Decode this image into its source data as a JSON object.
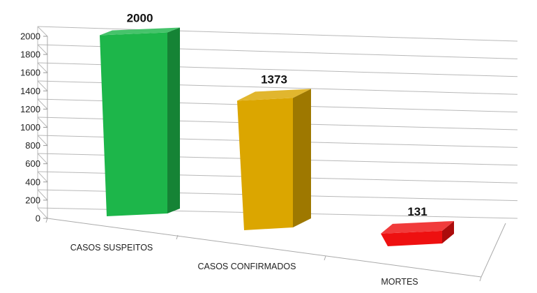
{
  "chart_data": {
    "type": "bar",
    "categories": [
      "CASOS SUSPEITOS",
      "CASOS CONFIRMADOS",
      "MORTES"
    ],
    "values": [
      2000,
      1373,
      131
    ],
    "colors": [
      "#1db64a",
      "#dba600",
      "#ee1010"
    ],
    "ylim": [
      0,
      2000
    ],
    "yticks": [
      0,
      200,
      400,
      600,
      800,
      1000,
      1200,
      1400,
      1600,
      1800,
      2000
    ],
    "grid": true,
    "legend": "none",
    "style": "3d-perspective"
  }
}
